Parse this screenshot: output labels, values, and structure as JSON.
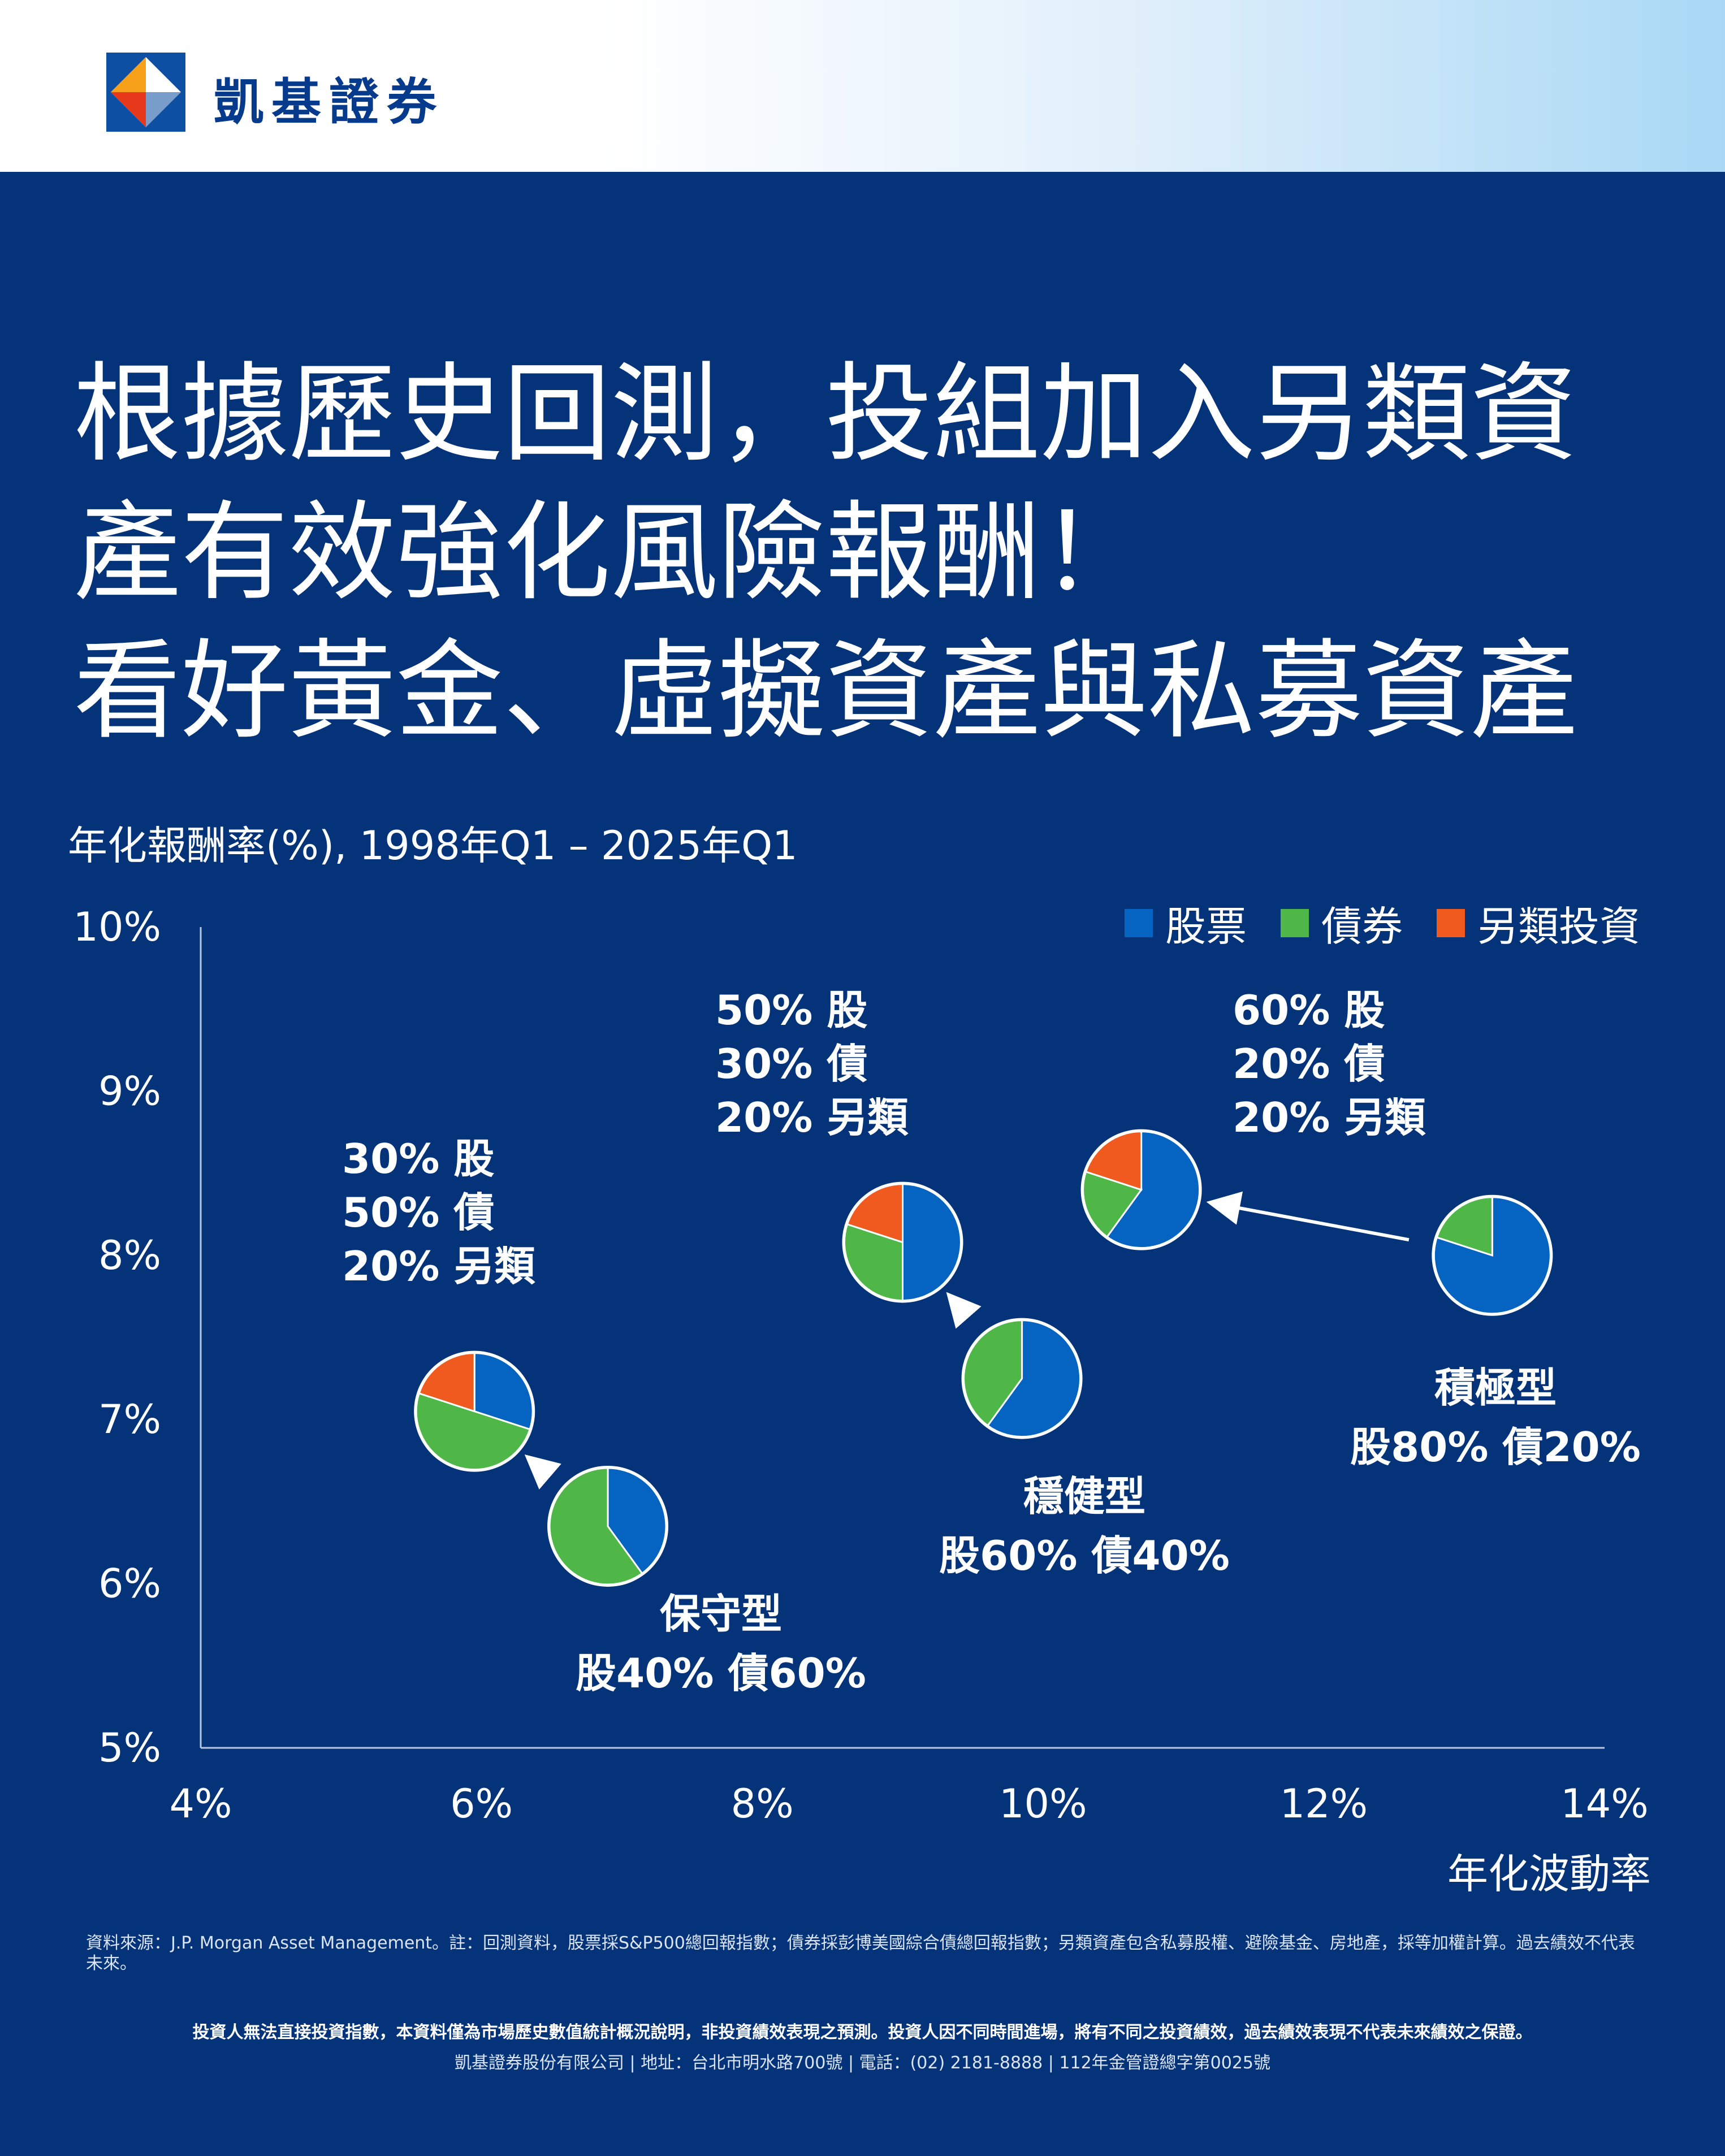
{
  "brand": {
    "name": "凱基證券",
    "logo_colors": [
      "#e8381b",
      "#f7a11a",
      "#0c4fa3",
      "#ffffff"
    ]
  },
  "headline": [
    "根據歷史回測，投組加入另類資",
    "產有效強化風險報酬！",
    "看好黃金、虛擬資產與私募資產"
  ],
  "colors": {
    "stocks": "#0563c1",
    "bonds": "#4eb748",
    "alternatives": "#f05a1e",
    "background": "#04337a"
  },
  "chart_data": {
    "type": "scatter",
    "ylabel": "年化報酬率(%), 1998年Q1 – 2025年Q1",
    "xlabel": "年化波動率",
    "xlim": [
      4,
      14
    ],
    "ylim": [
      5,
      10
    ],
    "x_ticks": [
      "4%",
      "6%",
      "8%",
      "10%",
      "12%",
      "14%"
    ],
    "y_ticks": [
      "10%",
      "9%",
      "8%",
      "7%",
      "6%",
      "5%"
    ],
    "grid": false,
    "legend_position": "top-right",
    "legend": [
      {
        "key": "stocks",
        "label": "股票"
      },
      {
        "key": "bonds",
        "label": "債券"
      },
      {
        "key": "alternatives",
        "label": "另類投資"
      }
    ],
    "points": [
      {
        "id": "conservative",
        "x": 6.9,
        "y": 6.35,
        "weights": {
          "stocks": 40,
          "bonds": 60,
          "alternatives": 0
        },
        "label_lines": [
          "保守型",
          "股40% 債60%"
        ]
      },
      {
        "id": "conservative-alt",
        "x": 5.95,
        "y": 7.05,
        "weights": {
          "stocks": 30,
          "bonds": 50,
          "alternatives": 20
        },
        "label_lines": [
          "30% 股",
          "50% 債",
          "20% 另類"
        ]
      },
      {
        "id": "balanced",
        "x": 9.85,
        "y": 7.25,
        "weights": {
          "stocks": 60,
          "bonds": 40,
          "alternatives": 0
        },
        "label_lines": [
          "穩健型",
          "股60% 債40%"
        ]
      },
      {
        "id": "balanced-alt",
        "x": 9.0,
        "y": 8.08,
        "weights": {
          "stocks": 50,
          "bonds": 30,
          "alternatives": 20
        },
        "label_lines": [
          "50% 股",
          "30% 債",
          "20% 另類"
        ]
      },
      {
        "id": "aggressive",
        "x": 13.2,
        "y": 8.0,
        "weights": {
          "stocks": 80,
          "bonds": 20,
          "alternatives": 0
        },
        "label_lines": [
          "積極型",
          "股80% 債20%"
        ]
      },
      {
        "id": "aggressive-alt",
        "x": 10.7,
        "y": 8.4,
        "weights": {
          "stocks": 60,
          "bonds": 20,
          "alternatives": 20
        },
        "label_lines": [
          "60% 股",
          "20% 債",
          "20% 另類"
        ]
      }
    ],
    "arrows": [
      {
        "from": "conservative",
        "to": "conservative-alt"
      },
      {
        "from": "balanced",
        "to": "balanced-alt"
      },
      {
        "from": "aggressive",
        "to": "aggressive-alt"
      }
    ]
  },
  "footnote": "資料來源：J.P. Morgan Asset Management。註：回測資料，股票採S&P500總回報指數；債券採彭博美國綜合債總回報指數；另類資產包含私募股權、避險基金、房地產，採等加權計算。過去績效不代表未來。",
  "disclaimer": "投資人無法直接投資指數，本資料僅為市場歷史數值統計概況說明，非投資績效表現之預測。投資人因不同時間進場，將有不同之投資績效，過去績效表現不代表未來績效之保證。",
  "company_info": "凱基證券股份有限公司 | 地址：台北市明水路700號 | 電話：(02) 2181-8888 | 112年金管證總字第0025號"
}
